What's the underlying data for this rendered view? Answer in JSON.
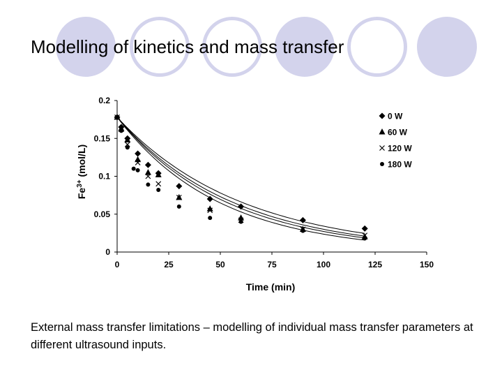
{
  "slide": {
    "title": "Modelling of kinetics and mass transfer",
    "caption": "External mass transfer limitations – modelling of individual mass transfer parameters at different ultrasound inputs.",
    "accent_color": "#d3d3ec"
  },
  "chart_data": {
    "type": "scatter",
    "title": "",
    "xlabel": "Time (min)",
    "ylabel_main": "Fe",
    "ylabel_sup": "3+",
    "ylabel_unit": " (mol/L)",
    "xlim": [
      0,
      150
    ],
    "ylim": [
      0,
      0.2
    ],
    "xticks": [
      0,
      25,
      50,
      75,
      100,
      125,
      150
    ],
    "yticks": [
      0,
      0.05,
      0.1,
      0.15,
      0.2
    ],
    "ytick_labels": [
      "0",
      "0.05",
      "0.1",
      "0.15",
      "0.2"
    ],
    "grid": false,
    "legend_position": "top-right",
    "series": [
      {
        "name": "0 W",
        "marker": "diamond",
        "x": [
          0,
          2,
          5,
          10,
          15,
          20,
          30,
          45,
          60,
          90,
          120
        ],
        "y": [
          0.178,
          0.165,
          0.15,
          0.13,
          0.115,
          0.104,
          0.087,
          0.07,
          0.06,
          0.042,
          0.031
        ],
        "fit": {
          "c0": 0.178,
          "k": 0.0165
        }
      },
      {
        "name": "60 W",
        "marker": "triangle",
        "x": [
          0,
          2,
          5,
          10,
          15,
          20,
          30,
          45,
          60,
          90,
          120
        ],
        "y": [
          0.178,
          0.163,
          0.148,
          0.122,
          0.105,
          0.102,
          0.072,
          0.057,
          0.045,
          0.03,
          0.02
        ],
        "fit": {
          "c0": 0.178,
          "k": 0.0178
        }
      },
      {
        "name": "120 W",
        "marker": "cross",
        "x": [
          0,
          2,
          5,
          10,
          15,
          20,
          30,
          45,
          60,
          90,
          120
        ],
        "y": [
          0.178,
          0.162,
          0.142,
          0.118,
          0.1,
          0.09,
          0.072,
          0.055,
          0.042,
          0.03,
          0.022
        ],
        "fit": {
          "c0": 0.178,
          "k": 0.0188
        }
      },
      {
        "name": "180 W",
        "marker": "circle",
        "x": [
          0,
          2,
          5,
          8,
          10,
          15,
          20,
          30,
          45,
          60,
          90,
          120
        ],
        "y": [
          0.178,
          0.16,
          0.138,
          0.11,
          0.108,
          0.089,
          0.082,
          0.06,
          0.045,
          0.04,
          0.028,
          0.018
        ],
        "fit": {
          "c0": 0.178,
          "k": 0.0202
        }
      }
    ]
  }
}
